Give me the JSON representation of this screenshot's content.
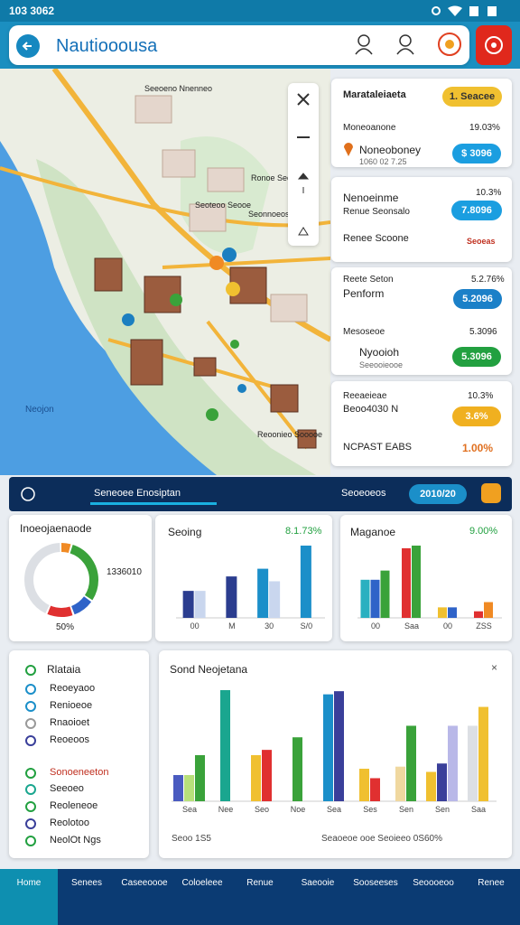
{
  "status_bar": {
    "time": "103 3062"
  },
  "app_bar": {
    "title": "Nautiooousa"
  },
  "map": {
    "labels": [
      "Neojon",
      "Seeoeno Nnenneo",
      "Ronoe Seoeoe",
      "Seonnoeosoe",
      "Reoonieo Sooooe",
      "Seoteoo Seooe"
    ]
  },
  "side_cards": [
    {
      "title": "Marataleiaeta",
      "badge": "1. Seacee",
      "sub": "Moneoanone",
      "stat": "19.03%",
      "item": "Noneoboney",
      "pill": "$ 3096",
      "note": "1060 02 7.25"
    },
    {
      "sub": "Nenoeinme",
      "stat": "10.3%",
      "item": "Renue Seonsalo",
      "pill": "7.8096",
      "item2": "Renee Scoone",
      "badge": "Seoeas"
    },
    {
      "sub": "Reete Seton",
      "stat": "5.2.76%",
      "item": "Penform",
      "pill": "5.2096",
      "sub2": "Mesoseoe",
      "stat2": "5.3096",
      "item2": "Nyooioh",
      "pill2": "5.3096",
      "note": "Seeooieooe"
    },
    {
      "sub": "Reeaeieae",
      "stat": "10.3%",
      "item": "Beoo4030 N",
      "pill": "3.6%",
      "item2": "NCPAST EABS",
      "stat2": "1.00%"
    }
  ],
  "summary_bar": {
    "title": "Seneoee Enosiptan",
    "label": "Seoeoeos",
    "pill": "2010/20"
  },
  "donut_card": {
    "title": "Inoeojaenaode",
    "total": "1336010",
    "percent": "50%",
    "segments": [
      {
        "value": 5,
        "color": "#f08a24"
      },
      {
        "value": 30,
        "color": "#3aa23a"
      },
      {
        "value": 10,
        "color": "#2f63c8"
      },
      {
        "value": 12,
        "color": "#e03030"
      },
      {
        "value": 43,
        "color": "#dcdfe4"
      }
    ]
  },
  "spend_card": {
    "title": "Seoing",
    "change": "8.1.73%",
    "groups": [
      {
        "label": "00",
        "bars": [
          {
            "value": 28,
            "color": "#2b3d8f"
          },
          {
            "value": 28,
            "color": "#c9d6ee"
          }
        ]
      },
      {
        "label": "M",
        "bars": [
          {
            "value": 43,
            "color": "#2b3d8f"
          }
        ]
      },
      {
        "label": "30",
        "bars": [
          {
            "value": 51,
            "color": "#1b8fc9"
          },
          {
            "value": 38,
            "color": "#c9d6ee"
          }
        ]
      },
      {
        "label": "S/0",
        "bars": [
          {
            "value": 75,
            "color": "#1b8fc9"
          }
        ]
      }
    ]
  },
  "manage_card": {
    "title": "Maganoe",
    "change": "9.00%",
    "groups": [
      {
        "label": "00",
        "bars": [
          {
            "value": 29,
            "color": "#2ab0c0"
          },
          {
            "value": 29,
            "color": "#2f63c8"
          },
          {
            "value": 36,
            "color": "#3aa23a"
          }
        ]
      },
      {
        "label": "Saa",
        "bars": [
          {
            "value": 53,
            "color": "#e03030"
          },
          {
            "value": 55,
            "color": "#3aa23a"
          }
        ]
      },
      {
        "label": "00",
        "bars": [
          {
            "value": 8,
            "color": "#f0c030"
          },
          {
            "value": 8,
            "color": "#2f63c8"
          }
        ]
      },
      {
        "label": "ZSS",
        "bars": [
          {
            "value": 5,
            "color": "#e03030"
          },
          {
            "value": 12,
            "color": "#f08a24"
          }
        ]
      }
    ]
  },
  "legend_card": {
    "title": "Rlataia",
    "items": [
      "Reoeyaoo",
      "Renioeoe",
      "Rnaoioet",
      "Reoeoos"
    ],
    "section": "Sonoeneeton",
    "section_items": [
      "Seeoeo",
      "Reoleneoe",
      "Reolotoo",
      "NeolOt Ngs"
    ]
  },
  "big_chart": {
    "title": "Sond Neojetana",
    "footer_left": "Seoo 1S5",
    "footer_right": "Seaoeoe ooe Seoieeo 0S60%",
    "groups": [
      {
        "label": "Sea",
        "bars": [
          {
            "value": 25,
            "color": "#4a5bc0"
          },
          {
            "value": 25,
            "color": "#b8e07a"
          },
          {
            "value": 44,
            "color": "#3aa23a"
          }
        ]
      },
      {
        "label": "Nee",
        "bars": [
          {
            "value": 106,
            "color": "#1aa68f"
          }
        ]
      },
      {
        "label": "Seo",
        "bars": [
          {
            "value": 44,
            "color": "#f0c030"
          },
          {
            "value": 49,
            "color": "#e03030"
          }
        ]
      },
      {
        "label": "Noe",
        "bars": [
          {
            "value": 61,
            "color": "#3aa23a"
          }
        ]
      },
      {
        "label": "Sea",
        "bars": [
          {
            "value": 102,
            "color": "#1b8fc9"
          },
          {
            "value": 105,
            "color": "#3a3f9a"
          }
        ]
      },
      {
        "label": "Ses",
        "bars": [
          {
            "value": 31,
            "color": "#f0c030"
          },
          {
            "value": 22,
            "color": "#e03030"
          }
        ]
      },
      {
        "label": "Sen",
        "bars": [
          {
            "value": 33,
            "color": "#f0d8a0"
          },
          {
            "value": 72,
            "color": "#3aa23a"
          }
        ]
      },
      {
        "label": "Sen",
        "bars": [
          {
            "value": 28,
            "color": "#f0c030"
          },
          {
            "value": 36,
            "color": "#3a3f9a"
          },
          {
            "value": 72,
            "color": "#b9b8e8"
          }
        ]
      },
      {
        "label": "Saa",
        "bars": [
          {
            "value": 72,
            "color": "#dcdfe4"
          },
          {
            "value": 90,
            "color": "#f0c030"
          }
        ]
      }
    ]
  },
  "nav": [
    "Home",
    "Senees",
    "Caseeoooe",
    "Coloeleee",
    "Renue",
    "Saeooie",
    "Sooseeses",
    "Seoooeoo",
    "Renee"
  ]
}
